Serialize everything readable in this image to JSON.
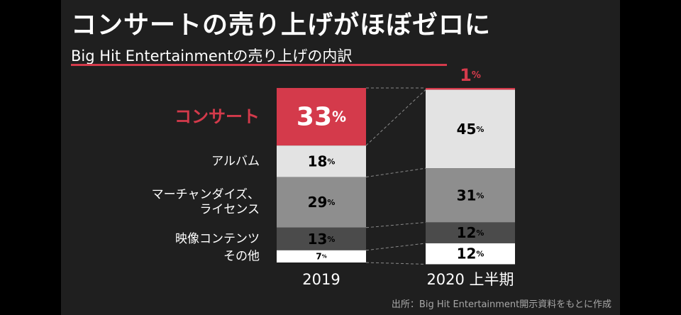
{
  "header": {
    "title": "コンサートの売り上げがほぼゼロに",
    "subtitle": "Big Hit Entertainmentの売り上げの内訳"
  },
  "source": "出所：Big Hit Entertainment開示資料をもとに作成",
  "colors": {
    "slide_bg": "#1f1f1f",
    "accent": "#d43a4b",
    "concert": "#d43a4b",
    "album": "#e3e3e3",
    "merch": "#8e8e8e",
    "video": "#4b4b4b",
    "other": "#ffffff"
  },
  "chart_data": {
    "type": "bar",
    "stacked": true,
    "normalized_percent": true,
    "categories": [
      "2019",
      "2020 上半期"
    ],
    "series": [
      {
        "name": "コンサート",
        "values": [
          33,
          1
        ],
        "labels": [
          "33%",
          "1%"
        ]
      },
      {
        "name": "アルバム",
        "values": [
          18,
          45
        ],
        "labels": [
          "18%",
          "45%"
        ]
      },
      {
        "name": "マーチャンダイズ、ライセンス",
        "values": [
          29,
          31
        ],
        "labels": [
          "29%",
          "31%"
        ]
      },
      {
        "name": "映像コンテンツ",
        "values": [
          13,
          12
        ],
        "labels": [
          "13%",
          "12%"
        ]
      },
      {
        "name": "その他",
        "values": [
          7,
          12
        ],
        "labels": [
          "7%",
          "12%"
        ]
      }
    ],
    "category_label_lines": [
      [
        "コンサート"
      ],
      [
        "アルバム"
      ],
      [
        "マーチャンダイズ、",
        "ライセンス"
      ],
      [
        "映像コンテンツ"
      ],
      [
        "その他"
      ]
    ],
    "highlight_series": "コンサート",
    "ylim": [
      0,
      100
    ]
  }
}
